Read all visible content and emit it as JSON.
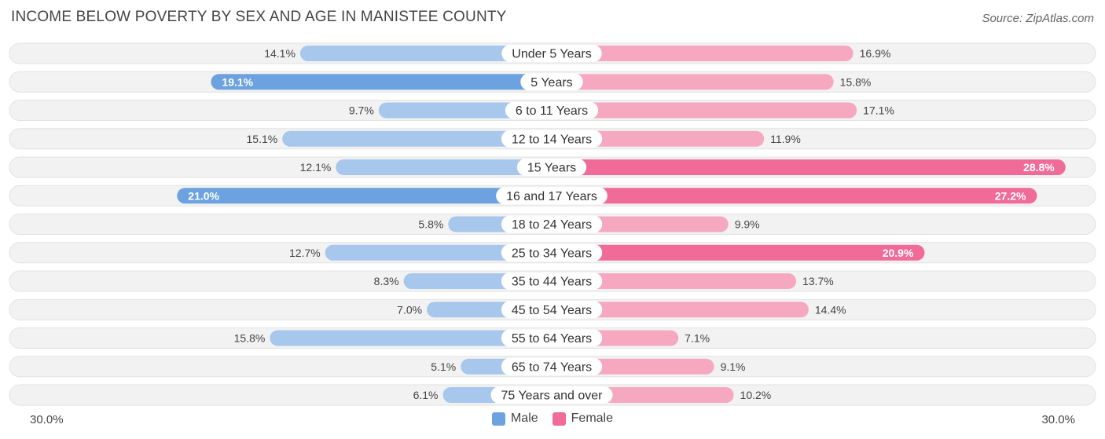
{
  "title": "INCOME BELOW POVERTY BY SEX AND AGE IN MANISTEE COUNTY",
  "source": "Source: ZipAtlas.com",
  "colors": {
    "male_light": "#a7c7ec",
    "male_dark": "#6ca2df",
    "female_light": "#f7a8c1",
    "female_dark": "#f06b97",
    "row_bg": "#efefef"
  },
  "legend": {
    "male": "Male",
    "female": "Female"
  },
  "axis": {
    "left": "30.0%",
    "right": "30.0%"
  },
  "chart_data": {
    "type": "bar",
    "orientation": "horizontal-diverging",
    "title": "INCOME BELOW POVERTY BY SEX AND AGE IN MANISTEE COUNTY",
    "categories": [
      "Under 5 Years",
      "5 Years",
      "6 to 11 Years",
      "12 to 14 Years",
      "15 Years",
      "16 and 17 Years",
      "18 to 24 Years",
      "25 to 34 Years",
      "35 to 44 Years",
      "45 to 54 Years",
      "55 to 64 Years",
      "65 to 74 Years",
      "75 Years and over"
    ],
    "series": [
      {
        "name": "Male",
        "values": [
          14.1,
          19.1,
          9.7,
          15.1,
          12.1,
          21.0,
          5.8,
          12.7,
          8.3,
          7.0,
          15.8,
          5.1,
          6.1
        ]
      },
      {
        "name": "Female",
        "values": [
          16.9,
          15.8,
          17.1,
          11.9,
          28.8,
          27.2,
          9.9,
          20.9,
          13.7,
          14.4,
          7.1,
          9.1,
          10.2
        ]
      }
    ],
    "xlim": [
      0,
      30.0
    ],
    "unit": "%"
  }
}
